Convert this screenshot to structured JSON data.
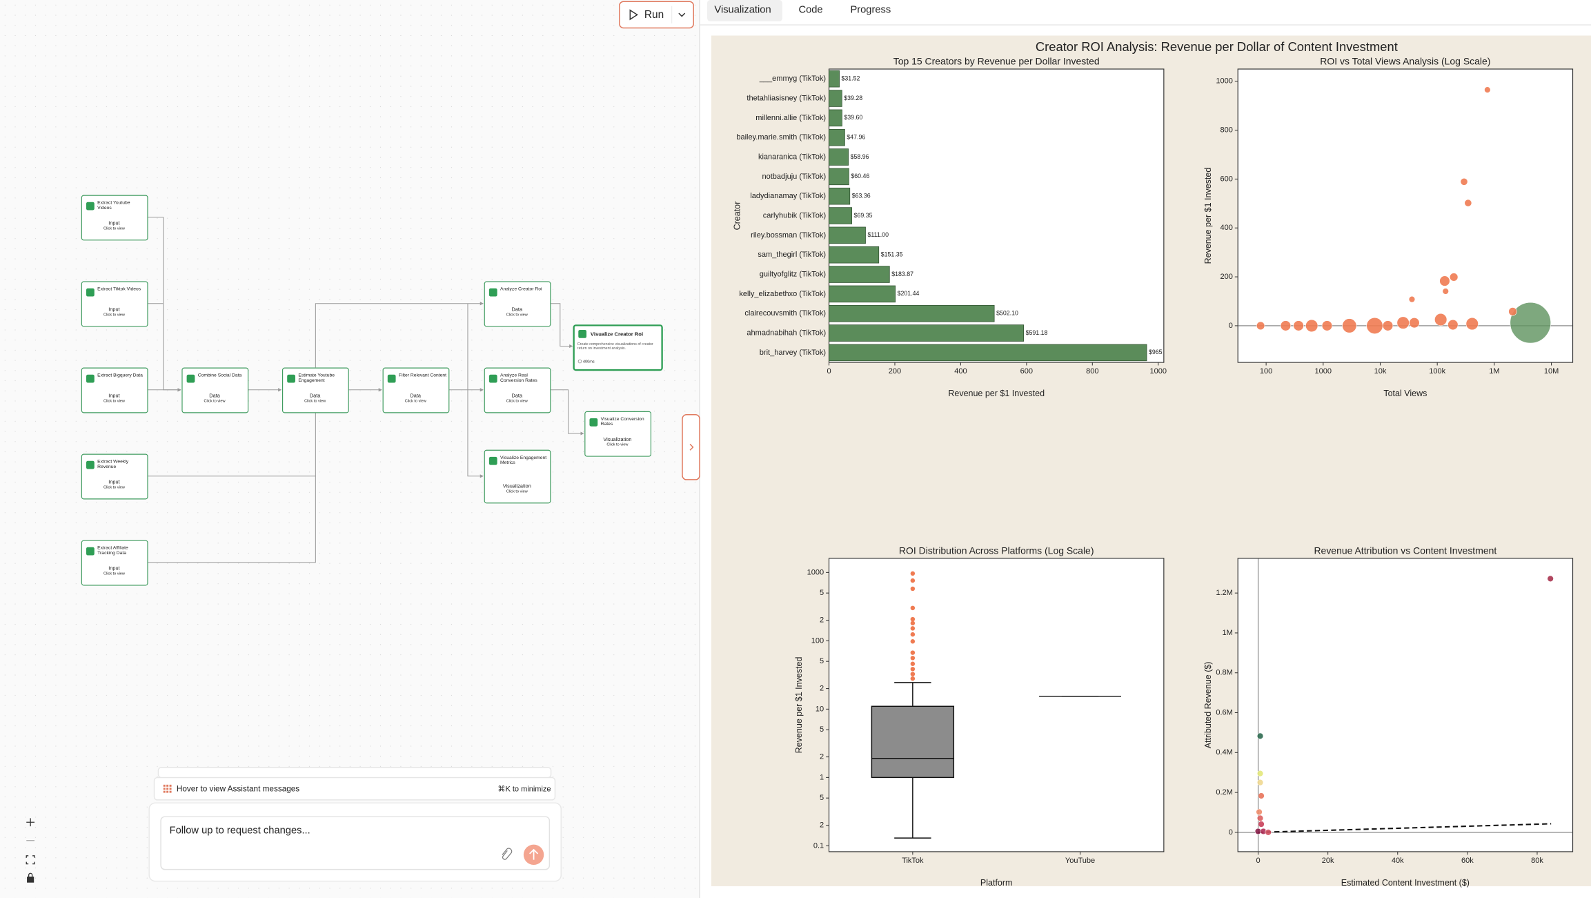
{
  "toolbar": {
    "run": "Run"
  },
  "workflow": {
    "nodes": [
      {
        "title": "Extract Youtube Videos",
        "kind": "Input",
        "hint": "Click to view"
      },
      {
        "title": "Extract Tiktok Videos",
        "kind": "Input",
        "hint": "Click to view"
      },
      {
        "title": "Extract Bigquery Data",
        "kind": "Input",
        "hint": "Click to view"
      },
      {
        "title": "Extract Weekly Revenue",
        "kind": "Input",
        "hint": "Click to view"
      },
      {
        "title": "Extract Affiliate Tracking Data",
        "kind": "Input",
        "hint": "Click to view"
      },
      {
        "title": "Combine Social Data",
        "kind": "Data",
        "hint": "Click to view"
      },
      {
        "title": "Estimate Youtube Engagement",
        "kind": "Data",
        "hint": "Click to view"
      },
      {
        "title": "Filter Relevant Content",
        "kind": "Data",
        "hint": "Click to view"
      },
      {
        "title": "Analyze Creator Roi",
        "kind": "Data",
        "hint": "Click to view"
      },
      {
        "title": "Analyze Real Conversion Rates",
        "kind": "Data",
        "hint": "Click to view"
      },
      {
        "title": "Visualize Engagement Metrics",
        "kind": "Visualization",
        "hint": "Click to view"
      },
      {
        "title": "Visualize Conversion Rates",
        "kind": "Visualization",
        "hint": "Click to view"
      }
    ],
    "selected": {
      "title": "Visualize Creator Roi",
      "description": "Create comprehensive visualizations of creator return on investment analysis.",
      "duration": "400ms"
    }
  },
  "chat": {
    "banner": "Hover to view Assistant messages",
    "shortcut": "⌘K to minimize",
    "placeholder": "Follow up to request changes..."
  },
  "tabs": [
    "Visualization",
    "Code",
    "Progress"
  ],
  "dashboard_title": "Creator ROI Analysis: Revenue per Dollar of Content Investment",
  "chart_data": [
    {
      "type": "bar",
      "orientation": "horizontal",
      "title": "Top 15 Creators by Revenue per Dollar Invested",
      "xlabel": "Revenue per $1 Invested",
      "ylabel": "Creator",
      "categories": [
        "___emmyg (TikTok)",
        "thetahliasisney (TikTok)",
        "millenni.allie (TikTok)",
        "bailey.marie.smith (TikTok)",
        "kianaranica (TikTok)",
        "notbadjuju (TikTok)",
        "ladydianamay (TikTok)",
        "carlyhubik (TikTok)",
        "riley.bossman (TikTok)",
        "sam_thegirl (TikTok)",
        "guiltyofglitz (TikTok)",
        "kelly_elizabethxo (TikTok)",
        "clairecouvsmith (TikTok)",
        "ahmadnabihah (TikTok)",
        "brit_harvey (TikTok)"
      ],
      "values": [
        31.52,
        39.28,
        39.6,
        47.96,
        58.96,
        60.46,
        63.36,
        69.35,
        111,
        151.35,
        183.87,
        201.44,
        502.1,
        591.18,
        965
      ],
      "value_labels": [
        "$31.52",
        "$39.28",
        "$39.60",
        "$47.96",
        "$58.96",
        "$60.46",
        "$63.36",
        "$69.35",
        "$111.00",
        "$151.35",
        "$183.87",
        "$201.44",
        "$502.10",
        "$591.18",
        "$965"
      ],
      "color": "#5b8c5a",
      "xlim": [
        0,
        1017
      ],
      "xticks": [
        0,
        200,
        400,
        600,
        800,
        1000
      ]
    },
    {
      "type": "scatter",
      "title": "ROI vs Total Views Analysis (Log Scale)",
      "xlabel": "Total Views",
      "ylabel": "Revenue per $1 Invested",
      "xscale": "log",
      "x": [
        757000,
        295000,
        347000,
        195000,
        135000,
        36000,
        140000,
        4300000,
        80,
        220,
        370,
        630,
        1170,
        2880,
        8000,
        13600,
        25200,
        39600,
        115000,
        188000,
        409000,
        2100000
      ],
      "values": [
        965,
        589,
        502,
        199,
        183,
        108,
        141,
        12,
        0,
        0,
        0,
        0,
        0,
        0,
        0,
        0,
        12,
        12,
        25,
        4,
        8,
        58
      ],
      "sizes": [
        3,
        3.5,
        3.5,
        4,
        5,
        3,
        3,
        20,
        4,
        5,
        5,
        6,
        5,
        7,
        8,
        5,
        6,
        5,
        6,
        5,
        6,
        4
      ],
      "colors": [
        "#ef7b52",
        "#ef7b52",
        "#ef7b52",
        "#ef7b52",
        "#ef7b52",
        "#ef7b52",
        "#ef7b52",
        "#5e925e",
        "#ef7b52",
        "#ef7b52",
        "#ef7b52",
        "#ef7b52",
        "#ef7b52",
        "#ef7b52",
        "#ef7b52",
        "#ef7b52",
        "#ef7b52",
        "#ef7b52",
        "#ef7b52",
        "#ef7b52",
        "#ef7b52",
        "#ef7b52"
      ],
      "xlim": [
        32,
        23700000
      ],
      "ylim": [
        -150,
        1050
      ],
      "xticks": [
        100,
        1000,
        {
          "value": 10000,
          "label": "10k"
        },
        {
          "value": 100000,
          "label": "100k"
        },
        {
          "value": 1000000,
          "label": "1M"
        },
        {
          "value": 10000000,
          "label": "10M"
        }
      ],
      "yticks": [
        0,
        200,
        400,
        600,
        800,
        1000
      ]
    },
    {
      "type": "box",
      "title": "ROI Distribution Across Platforms (Log Scale)",
      "xlabel": "Platform",
      "ylabel": "Revenue per $1 Invested",
      "yscale": "log",
      "categories": [
        "TikTok",
        "YouTube"
      ],
      "color": "#8c8c8c",
      "flier_color": "#ef7b52",
      "boxes": [
        {
          "whislo": 0.13,
          "q1": 1,
          "med": 1.9,
          "q3": 11,
          "whishi": 24.5,
          "fliers": [
            966,
            761,
            578,
            302,
            207,
            181,
            152,
            124,
            98,
            67,
            56,
            46,
            38.6,
            32.6,
            28
          ]
        },
        {
          "whislo": 15.4,
          "q1": 15.4,
          "med": 15.4,
          "q3": 15.4,
          "whishi": 15.4,
          "fliers": []
        }
      ],
      "ylim": [
        0.082,
        1610
      ],
      "yticks": [
        0.1,
        {
          "value": 0.2,
          "label": "2"
        },
        {
          "value": 0.5,
          "label": "5"
        },
        1,
        {
          "value": 2,
          "label": "2"
        },
        {
          "value": 5,
          "label": "5"
        },
        10,
        {
          "value": 20,
          "label": "2"
        },
        {
          "value": 50,
          "label": "5"
        },
        100,
        {
          "value": 200,
          "label": "2"
        },
        {
          "value": 500,
          "label": "5"
        },
        1000
      ]
    },
    {
      "type": "scatter",
      "title": "Revenue Attribution vs Content Investment",
      "xlabel": "Estimated Content Investment ($)",
      "ylabel": "Attributed Revenue ($)",
      "x": [
        83800,
        600,
        600,
        600,
        900,
        300,
        600,
        900,
        0,
        1500,
        2900
      ],
      "values": [
        1272000,
        483000,
        295000,
        250000,
        183000,
        102000,
        71000,
        41000,
        5000,
        5000,
        0
      ],
      "colors": [
        "#a8334f",
        "#2e6a50",
        "#e3e87a",
        "#f0d890",
        "#e8735a",
        "#ee8c6a",
        "#dc6160",
        "#c9405a",
        "#8a1f4a",
        "#b03058",
        "#d05060"
      ],
      "trend": {
        "x": [
          0,
          84000
        ],
        "values": [
          0,
          43000
        ]
      },
      "xlim": [
        -5800,
        90200
      ],
      "ylim": [
        -97000,
        1374000
      ],
      "xticks": [
        0,
        {
          "value": 20000,
          "label": "20k"
        },
        {
          "value": 40000,
          "label": "40k"
        },
        {
          "value": 60000,
          "label": "60k"
        },
        {
          "value": 80000,
          "label": "80k"
        }
      ],
      "yticks": [
        0,
        {
          "value": 200000,
          "label": "0.2M"
        },
        {
          "value": 400000,
          "label": "0.4M"
        },
        {
          "value": 600000,
          "label": "0.6M"
        },
        {
          "value": 800000,
          "label": "0.8M"
        },
        {
          "value": 1000000,
          "label": "1M"
        },
        {
          "value": 1200000,
          "label": "1.2M"
        }
      ]
    }
  ]
}
